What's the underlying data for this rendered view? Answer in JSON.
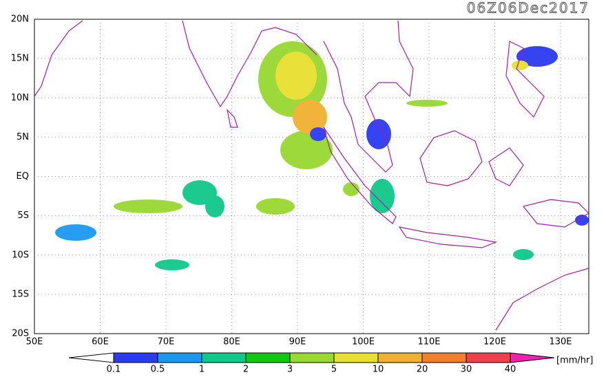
{
  "map": {
    "title": "06Z06Dec2017",
    "lat_labels": [
      "20N",
      "15N",
      "10N",
      "5N",
      "EQ",
      "5S",
      "10S",
      "15S",
      "20S"
    ],
    "lon_labels": [
      "50E",
      "60E",
      "70E",
      "80E",
      "90E",
      "100E",
      "110E",
      "120E",
      "130E"
    ],
    "colorbar": {
      "levels": [
        0.1,
        0.5,
        1,
        2,
        3,
        5,
        10,
        20,
        30,
        40
      ],
      "colors": [
        "#ffffff",
        "#2b3bf0",
        "#1a98f0",
        "#10c88a",
        "#10c810",
        "#98d830",
        "#e8e030",
        "#f0b030",
        "#f08030",
        "#f04050",
        "#f020b0"
      ],
      "unit": "[mm/hr]"
    }
  }
}
